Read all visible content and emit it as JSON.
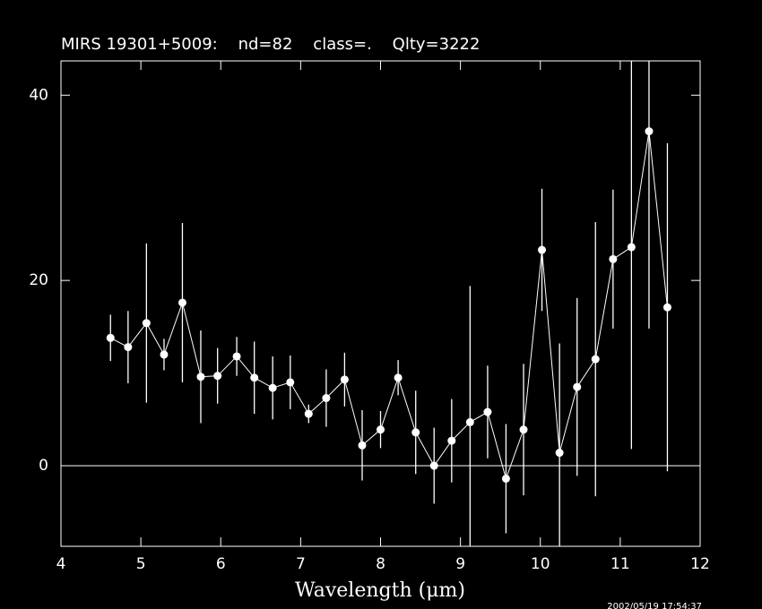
{
  "chart_data": {
    "type": "errorbar",
    "title": "MIRS 19301+5009:    nd=82    class=.    Qlty=3222",
    "xlabel": "Wavelength (μm)",
    "annotation": "2002/05/19 17:54:37",
    "x": [
      4.62,
      4.84,
      5.07,
      5.29,
      5.52,
      5.75,
      5.96,
      6.2,
      6.42,
      6.65,
      6.87,
      7.1,
      7.32,
      7.55,
      7.77,
      8.0,
      8.22,
      8.44,
      8.67,
      8.89,
      9.12,
      9.34,
      9.57,
      9.79,
      10.02,
      10.24,
      10.46,
      10.69,
      10.91,
      11.14,
      11.36,
      11.59
    ],
    "values": [
      13.8,
      12.8,
      15.4,
      12.0,
      17.6,
      9.6,
      9.7,
      11.8,
      9.5,
      8.4,
      9.0,
      5.6,
      7.3,
      9.3,
      2.2,
      3.9,
      9.5,
      3.6,
      0.0,
      2.7,
      4.7,
      5.8,
      -1.4,
      3.9,
      23.3,
      1.4,
      8.5,
      11.5,
      22.3,
      23.6,
      36.1,
      17.1
    ],
    "errors": [
      2.5,
      3.9,
      8.6,
      1.7,
      8.6,
      5.0,
      3.0,
      2.1,
      3.9,
      3.4,
      2.9,
      1.0,
      3.1,
      2.9,
      3.8,
      2.0,
      1.9,
      4.5,
      4.1,
      4.5,
      14.7,
      5.0,
      5.9,
      7.1,
      6.6,
      11.8,
      9.6,
      14.8,
      7.5,
      21.8,
      21.3,
      17.7
    ],
    "color": "#ffffff",
    "xlim": [
      4,
      12
    ],
    "ylim": [
      -8.7,
      43.7
    ],
    "xticks": [
      4,
      5,
      6,
      7,
      8,
      9,
      10,
      11,
      12
    ],
    "yticks": [
      0,
      20,
      40
    ]
  }
}
